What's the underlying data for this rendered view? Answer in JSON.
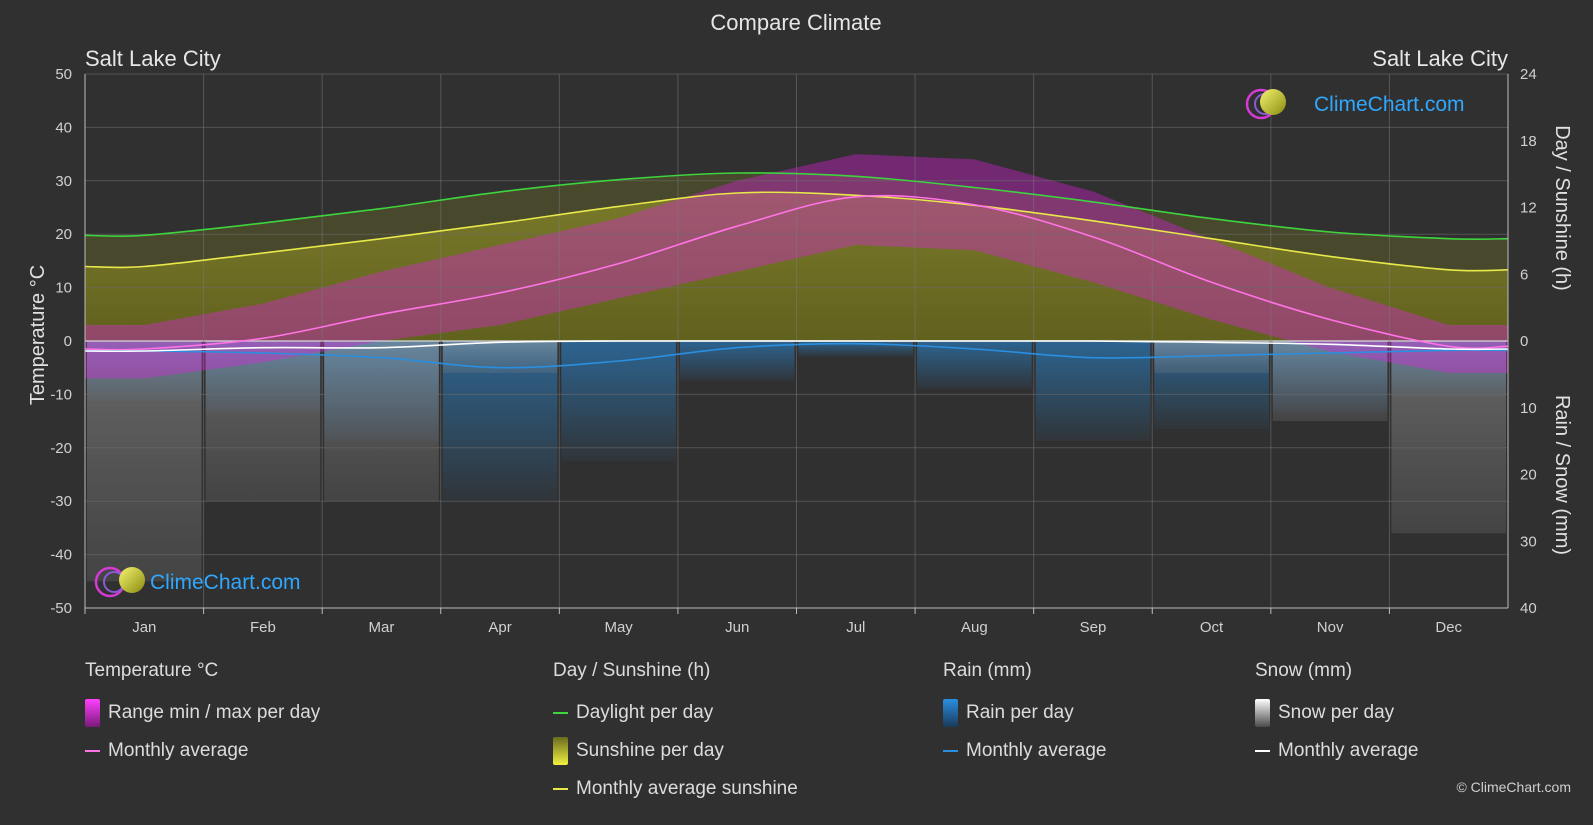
{
  "title": "Compare Climate",
  "location_left": "Salt Lake City",
  "location_right": "Salt Lake City",
  "brand": "ClimeChart.com",
  "copyright": "© ClimeChart.com",
  "colors": {
    "background": "#303030",
    "daylight": "#3ed43e",
    "sunshine_avg": "#e8e84a",
    "temp_avg": "#ff73e6",
    "rain_avg": "#2a8fe0",
    "snow_avg": "#ffffff",
    "temp_range": "#e020e0",
    "rain_bar": "#1a6fc0",
    "snow_bar": "#9a9a9a",
    "brand_text": "#2fa8ff"
  },
  "legend": {
    "temperature": {
      "title": "Temperature °C",
      "range": "Range min / max per day",
      "avg": "Monthly average"
    },
    "sunshine": {
      "title": "Day / Sunshine (h)",
      "daylight": "Daylight per day",
      "sunshine": "Sunshine per day",
      "avg": "Monthly average sunshine"
    },
    "rain": {
      "title": "Rain (mm)",
      "per_day": "Rain per day",
      "avg": "Monthly average"
    },
    "snow": {
      "title": "Snow (mm)",
      "per_day": "Snow per day",
      "avg": "Monthly average"
    }
  },
  "chart_data": {
    "type": "line",
    "title": "Compare Climate",
    "categories": [
      "Jan",
      "Feb",
      "Mar",
      "Apr",
      "May",
      "Jun",
      "Jul",
      "Aug",
      "Sep",
      "Oct",
      "Nov",
      "Dec"
    ],
    "axes": {
      "left": {
        "label": "Temperature °C",
        "min": -50,
        "max": 50,
        "ticks": [
          50,
          40,
          30,
          20,
          10,
          0,
          -10,
          -20,
          -30,
          -40,
          -50
        ]
      },
      "right_top": {
        "label": "Day / Sunshine (h)",
        "min": 0,
        "max": 24,
        "ticks": [
          24,
          18,
          12,
          6,
          0
        ]
      },
      "right_bottom": {
        "label": "Rain / Snow (mm)",
        "min": 0,
        "max": 40,
        "ticks": [
          10,
          20,
          30,
          40
        ]
      }
    },
    "grid": true,
    "series": [
      {
        "name": "Daylight per day",
        "axis": "right_top",
        "values": [
          9.5,
          10.6,
          11.9,
          13.4,
          14.5,
          15.1,
          14.8,
          13.8,
          12.5,
          11.0,
          9.8,
          9.2
        ]
      },
      {
        "name": "Monthly average sunshine",
        "axis": "right_top",
        "values": [
          6.7,
          7.9,
          9.2,
          10.6,
          12.1,
          13.3,
          13.1,
          12.2,
          10.8,
          9.2,
          7.6,
          6.4
        ]
      },
      {
        "name": "Monthly average",
        "axis": "left",
        "values": [
          -1.5,
          0.5,
          5.0,
          9.0,
          14.5,
          21.5,
          27.0,
          25.5,
          19.5,
          11.0,
          4.0,
          -1.0
        ]
      },
      {
        "name": "Monthly average",
        "axis": "right_bottom",
        "values": [
          1.5,
          1.8,
          2.5,
          4.0,
          3.0,
          1.0,
          0.4,
          1.2,
          2.5,
          2.2,
          1.8,
          1.4
        ]
      },
      {
        "name": "Monthly average",
        "axis": "right_bottom",
        "values": [
          1.5,
          1.0,
          1.0,
          0.2,
          0.0,
          0.0,
          0.0,
          0.0,
          0.0,
          0.2,
          0.5,
          1.2
        ]
      }
    ],
    "temperature_range": {
      "min": [
        -7,
        -4,
        0,
        3,
        8,
        13,
        18,
        17,
        11,
        4,
        -2,
        -6
      ],
      "max": [
        3,
        7,
        13,
        18,
        23,
        30,
        35,
        34,
        28,
        19,
        10,
        3
      ]
    }
  }
}
